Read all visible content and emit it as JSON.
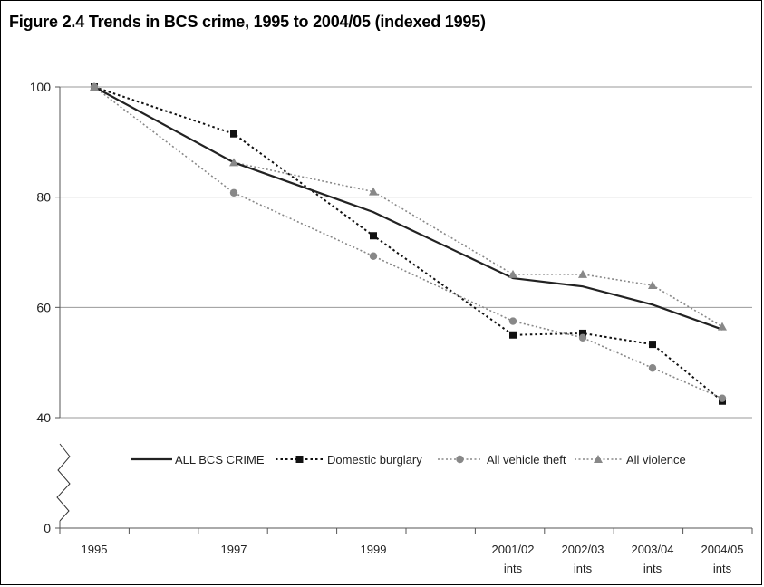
{
  "title": "Figure 2.4  Trends in BCS crime, 1995 to 2004/05 (indexed 1995)",
  "chart_data": {
    "type": "line",
    "title": "Figure 2.4  Trends in BCS crime, 1995 to 2004/05 (indexed 1995)",
    "xlabel": "",
    "ylabel": "",
    "categories": [
      "1995",
      "1997",
      "1999",
      "2001/02 ints",
      "2002/03 ints",
      "2003/04 ints",
      "2004/05 ints"
    ],
    "x_tick_labels": [
      [
        "1995"
      ],
      [
        "1997"
      ],
      [
        "1999"
      ],
      [
        "2001/02",
        "ints"
      ],
      [
        "2002/03",
        "ints"
      ],
      [
        "2003/04",
        "ints"
      ],
      [
        "2004/05",
        "ints"
      ]
    ],
    "x_positions": [
      1995,
      1997,
      1999,
      2001,
      2002,
      2003,
      2004
    ],
    "y_ticks": [
      0,
      40,
      60,
      80,
      100
    ],
    "ylim": [
      40,
      100
    ],
    "y_axis_break": true,
    "grid": true,
    "legend_position": "bottom-inside",
    "series": [
      {
        "name": "ALL BCS CRIME",
        "values": [
          100,
          86.3,
          77.3,
          65.3,
          63.8,
          60.5,
          56
        ],
        "color": "#222222",
        "style": "solid",
        "marker": "none"
      },
      {
        "name": "Domestic burglary",
        "values": [
          100,
          91.5,
          73,
          55,
          55.3,
          53.3,
          43
        ],
        "color": "#111111",
        "style": "dotted",
        "marker": "square"
      },
      {
        "name": "All vehicle theft",
        "values": [
          100,
          80.8,
          69.3,
          57.5,
          54.5,
          49,
          43.5
        ],
        "color": "#888888",
        "style": "dotted",
        "marker": "circle"
      },
      {
        "name": "All violence",
        "values": [
          100,
          86.3,
          81,
          66,
          66,
          64,
          56.5
        ],
        "color": "#888888",
        "style": "dotted",
        "marker": "triangle"
      }
    ]
  }
}
